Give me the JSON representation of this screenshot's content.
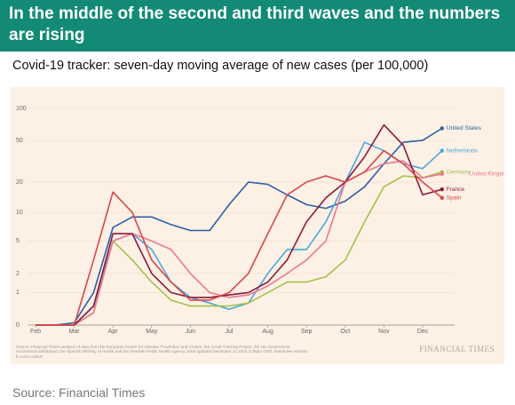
{
  "header": {
    "title": "In the middle of the second and third waves and the numbers are rising",
    "subtitle": "Covid-19 tracker: seven-day moving average of new cases (per 100,000)"
  },
  "chart_data": {
    "type": "line",
    "yscale": "symlog",
    "grid": true,
    "categories": [
      "Feb",
      null,
      "Mar",
      null,
      "Apr",
      null,
      "May",
      null,
      "Jun",
      null,
      "Jul",
      null,
      "Aug",
      null,
      "Sep",
      null,
      "Oct",
      null,
      "Nov",
      null,
      "Dec",
      null
    ],
    "series": [
      {
        "name": "United States",
        "color": "#2e5ea8",
        "values": [
          0,
          0,
          0.05,
          1,
          7,
          9,
          9,
          7.5,
          6.5,
          6.5,
          12,
          20,
          19,
          15,
          12,
          11,
          13,
          18,
          30,
          48,
          50,
          65
        ]
      },
      {
        "name": "Netherlands",
        "color": "#4aa8dc",
        "values": [
          0,
          0,
          0,
          0.5,
          5,
          6,
          4,
          1.5,
          0.8,
          0.6,
          0.4,
          0.6,
          2,
          4,
          4,
          8,
          20,
          48,
          40,
          30,
          27,
          40
        ]
      },
      {
        "name": "Germany",
        "color": "#a3c24a",
        "values": [
          0,
          0,
          0,
          0.3,
          5,
          3,
          1.5,
          0.7,
          0.5,
          0.5,
          0.5,
          0.6,
          1,
          1.5,
          1.5,
          1.8,
          3,
          8,
          18,
          23,
          22,
          25
        ]
      },
      {
        "name": "United Kingdom",
        "color": "#ea7890",
        "values": [
          0,
          0,
          0,
          0.3,
          5,
          6,
          5,
          4,
          2,
          1,
          0.8,
          0.9,
          1.3,
          2,
          3,
          5,
          20,
          25,
          30,
          32,
          22,
          24
        ]
      },
      {
        "name": "France",
        "color": "#8a1a3c",
        "values": [
          0,
          0,
          0,
          0.5,
          6,
          6,
          2,
          1,
          0.8,
          0.8,
          0.9,
          1,
          1.5,
          3,
          8,
          14,
          20,
          35,
          70,
          45,
          15,
          17
        ]
      },
      {
        "name": "Spain",
        "color": "#d8464a",
        "values": [
          0,
          0,
          0,
          3,
          16,
          10,
          3,
          1.5,
          0.7,
          0.7,
          1,
          2,
          6,
          15,
          20,
          23,
          20,
          25,
          40,
          30,
          20,
          14
        ]
      }
    ],
    "ylim": [
      0,
      100
    ],
    "yticks": [
      0,
      1,
      2,
      5,
      10,
      20,
      50,
      100
    ],
    "note": "Source: Financial Times analysis of data from the European Centre for Disease Prevention and Control, the Covid Tracking Project, the UK Government coronavirus dashboard, the Spanish Ministry of Health and the Swedish Public Health Agency. Data updated December 12 2020 3:38pm GMT. Interactive version: ft.com/covid19",
    "brand": "FINANCIAL TIMES"
  },
  "footer": {
    "source": "Source: Financial Times"
  }
}
